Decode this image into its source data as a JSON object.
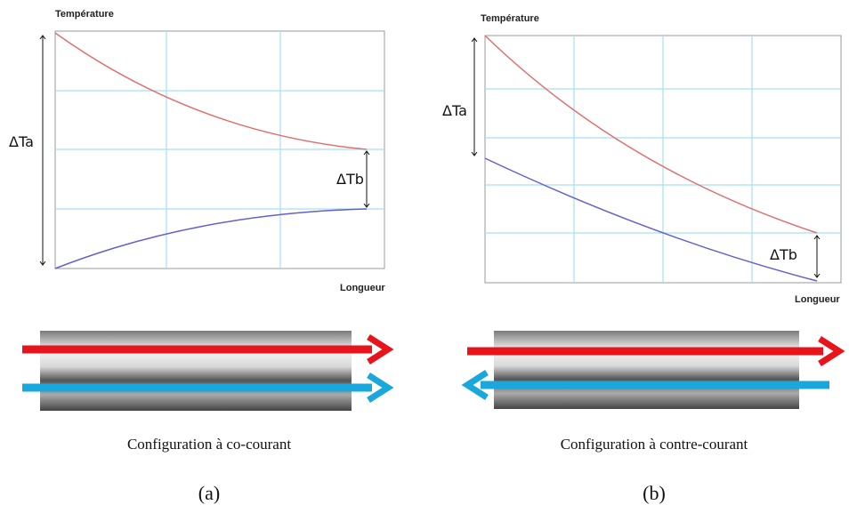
{
  "panels": [
    {
      "y_label": "Température",
      "x_label": "Longueur",
      "delta_a": "ΔTa",
      "delta_b": "ΔTb",
      "caption": "Configuration à co-courant",
      "tag": "(a)"
    },
    {
      "y_label": "Température",
      "x_label": "Longueur",
      "delta_a": "ΔTa",
      "delta_b": "ΔTb",
      "caption": "Configuration à contre-courant",
      "tag": "(b)"
    }
  ]
}
